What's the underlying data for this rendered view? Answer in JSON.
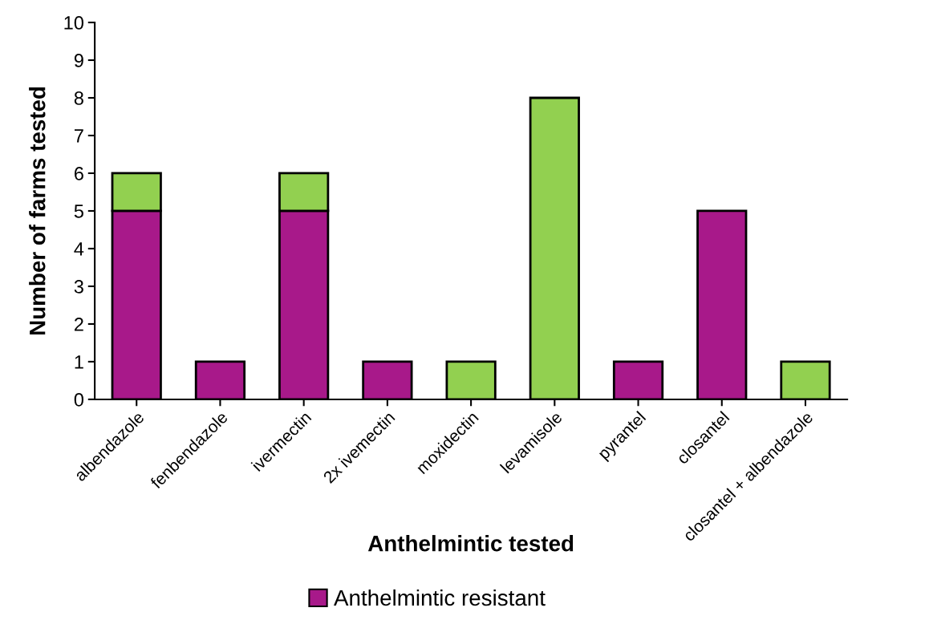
{
  "chart_data": {
    "type": "bar",
    "stacked": true,
    "xlabel": "Anthelmintic tested",
    "ylabel": "Number of farms tested",
    "categories": [
      "albendazole",
      "fenbendazole",
      "ivermectin",
      "2x ivemectin",
      "moxidectin",
      "levamisole",
      "pyrantel",
      "closantel",
      "closantel + albendazole"
    ],
    "series": [
      {
        "name": "Anthelmintic resistant",
        "color": "#a8198a",
        "values": [
          5,
          1,
          5,
          1,
          0,
          0,
          1,
          5,
          0
        ]
      },
      {
        "color": "#92d050",
        "values": [
          1,
          0,
          1,
          0,
          1,
          8,
          0,
          0,
          1
        ]
      }
    ],
    "ylim": [
      0,
      10
    ],
    "yticks": [
      0,
      1,
      2,
      3,
      4,
      5,
      6,
      7,
      8,
      9,
      10
    ],
    "grid": false,
    "legend": "bottom"
  }
}
